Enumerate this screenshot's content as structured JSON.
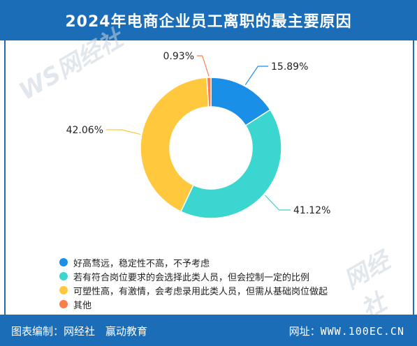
{
  "header": {
    "title": "2024年电商企业员工离职的最主要原因"
  },
  "watermark": {
    "logo": "WS 网经社 100EC.CN"
  },
  "chart_data": {
    "type": "pie",
    "style": "donut",
    "title": "2024年电商企业员工离职的最主要原因",
    "slices": [
      {
        "label": "好高骛远，稳定性不高，不予考虑",
        "value": 15.89,
        "display": "15.89%",
        "color": "#1a8fe8"
      },
      {
        "label": "若有符合岗位要求的会选择此类人员，但会控制一定的比例",
        "value": 41.12,
        "display": "41.12%",
        "color": "#3ad6cf"
      },
      {
        "label": "可塑性高，有激情，会考虑录用此类人员，但需从基础岗位做起",
        "value": 42.06,
        "display": "42.06%",
        "color": "#ffc83d"
      },
      {
        "label": "其他",
        "value": 0.93,
        "display": "0.93%",
        "color": "#fd7e4b"
      }
    ],
    "legend_position": "bottom-left"
  },
  "footer": {
    "editor": "图表编制：网经社　赢动教育",
    "url_label": "网址：",
    "url": "WWW.100EC.CN"
  }
}
